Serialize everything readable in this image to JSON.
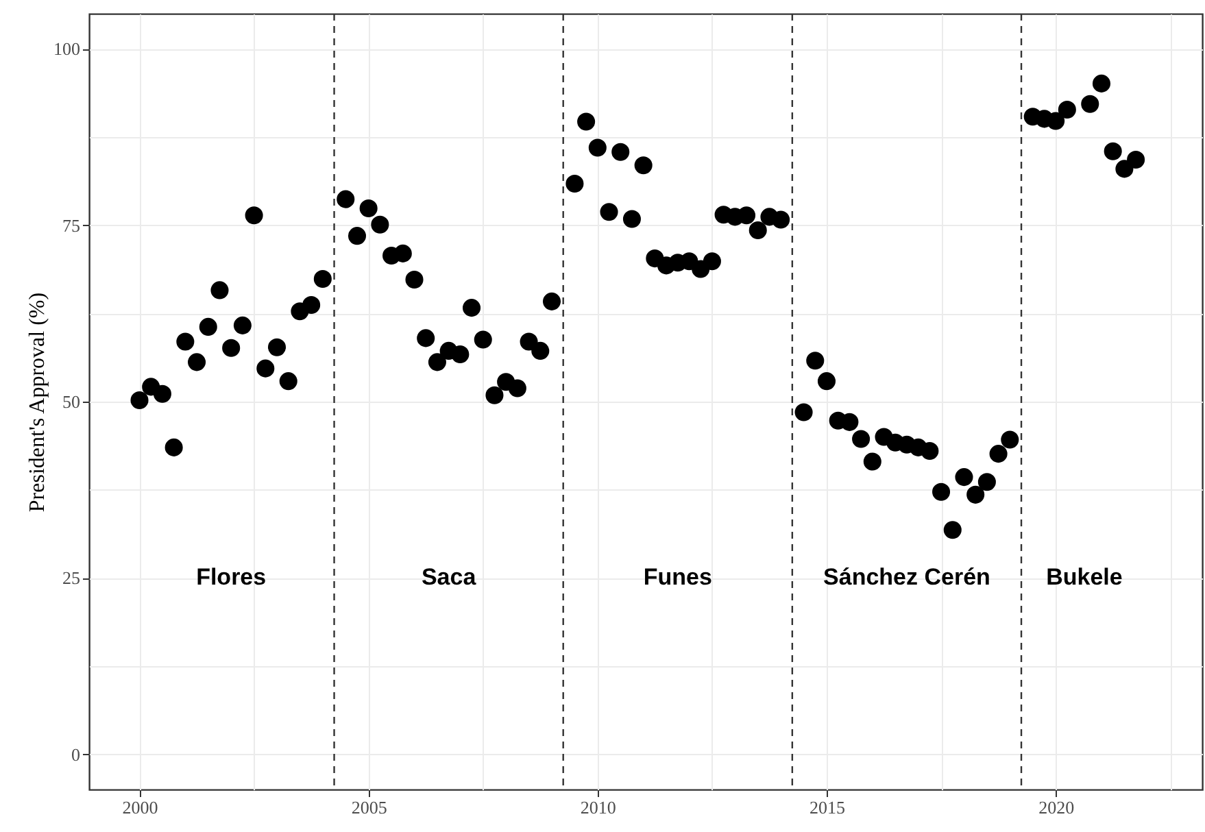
{
  "chart_data": {
    "type": "scatter",
    "ylabel": "President's Approval (%)",
    "xlim": [
      1998.9,
      2023.2
    ],
    "ylim": [
      -5,
      105
    ],
    "xticks": [
      2000,
      {
        "value": 2002.5,
        "label": null
      },
      2005,
      {
        "value": 2007.5,
        "label": null
      },
      2010,
      {
        "value": 2012.5,
        "label": null
      },
      2015,
      {
        "value": 2017.5,
        "label": null
      },
      2020,
      {
        "value": 2022.5,
        "label": null
      }
    ],
    "yticks": [
      0,
      {
        "value": 12.5,
        "label": null
      },
      25,
      {
        "value": 37.5,
        "label": null
      },
      50,
      {
        "value": 62.5,
        "label": null
      },
      75,
      {
        "value": 87.5,
        "label": null
      },
      100
    ],
    "grid": true,
    "marker": "circle",
    "series": [
      {
        "color": "#000000",
        "x": [
          2000.0,
          2000.25,
          2000.5,
          2000.75,
          2001.0,
          2001.25,
          2001.5,
          2001.75,
          2002.0,
          2002.25,
          2002.5,
          2002.75,
          2003.0,
          2003.25,
          2003.5,
          2003.75,
          2004.0,
          2004.5,
          2004.75,
          2005.0,
          2005.25,
          2005.5,
          2005.75,
          2006.0,
          2006.25,
          2006.5,
          2006.75,
          2007.0,
          2007.25,
          2007.5,
          2007.75,
          2008.0,
          2008.25,
          2008.5,
          2008.75,
          2009.0,
          2009.5,
          2009.75,
          2010.0,
          2010.25,
          2010.5,
          2010.75,
          2011.0,
          2011.25,
          2011.5,
          2011.75,
          2012.0,
          2012.25,
          2012.5,
          2012.75,
          2013.0,
          2013.25,
          2013.5,
          2013.75,
          2014.0,
          2014.5,
          2014.75,
          2015.0,
          2015.25,
          2015.5,
          2015.75,
          2016.0,
          2016.25,
          2016.5,
          2016.75,
          2017.0,
          2017.25,
          2017.5,
          2017.75,
          2018.0,
          2018.25,
          2018.5,
          2018.75,
          2019.0,
          2019.5,
          2019.75,
          2020.0,
          2020.25,
          2020.75,
          2021.0,
          2021.25,
          2021.5,
          2021.75
        ],
        "values": [
          50.2,
          52.1,
          51.1,
          43.5,
          58.5,
          55.6,
          60.6,
          65.8,
          57.6,
          60.8,
          76.4,
          54.7,
          57.7,
          52.9,
          62.8,
          63.7,
          67.4,
          78.7,
          73.5,
          77.4,
          75.1,
          70.7,
          71.0,
          67.3,
          59.0,
          55.6,
          57.2,
          56.7,
          63.3,
          58.8,
          50.9,
          52.8,
          51.9,
          58.5,
          57.2,
          64.2,
          80.9,
          89.7,
          86.0,
          76.9,
          85.4,
          75.9,
          83.5,
          70.3,
          69.3,
          69.7,
          69.9,
          68.8,
          69.9,
          76.5,
          76.2,
          76.4,
          74.3,
          76.2,
          75.8,
          48.5,
          55.8,
          52.9,
          47.3,
          47.1,
          44.7,
          41.5,
          45.0,
          44.2,
          43.9,
          43.5,
          43.0,
          37.2,
          31.8,
          39.3,
          36.8,
          38.6,
          42.6,
          44.6,
          90.4,
          90.1,
          89.8,
          91.4,
          92.2,
          95.1,
          85.5,
          83.0,
          84.3
        ]
      }
    ],
    "ref_lines": [
      {
        "axis": "x",
        "value": 2004.25,
        "color": "#333333",
        "line_style": "dashed"
      },
      {
        "axis": "x",
        "value": 2009.25,
        "color": "#333333",
        "line_style": "dashed"
      },
      {
        "axis": "x",
        "value": 2014.25,
        "color": "#333333",
        "line_style": "dashed"
      },
      {
        "axis": "x",
        "value": 2019.25,
        "color": "#333333",
        "line_style": "dashed"
      }
    ],
    "annotations": [
      "Flores",
      "Saca",
      "Funes",
      "Sánchez Cerén",
      "Bukele"
    ]
  }
}
